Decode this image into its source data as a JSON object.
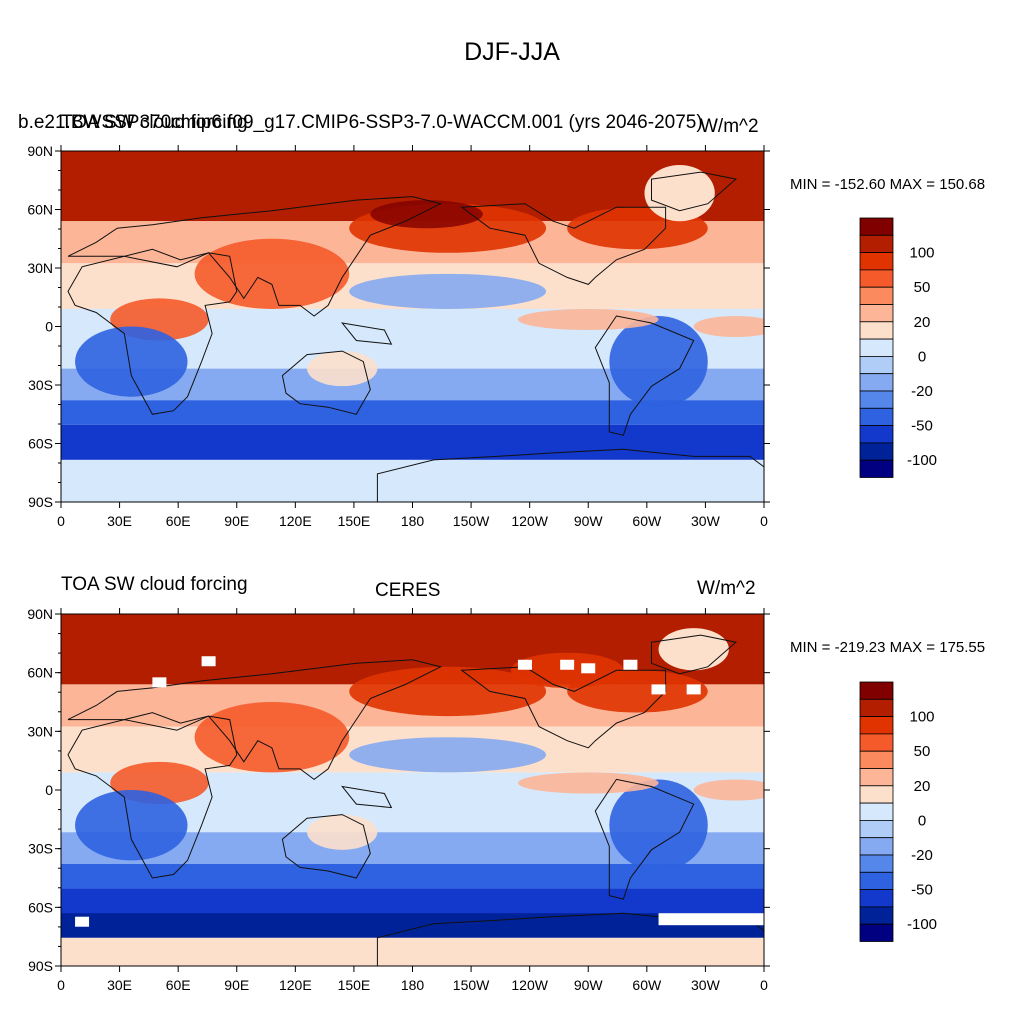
{
  "title": "DJF-JJA",
  "panels": [
    {
      "left_string": "TOA SW cloud forcing",
      "center_string": "b.e21.BWSSP370cmip6.f09_g17.CMIP6-SSP3-7.0-WACCM.001 (yrs 2046-2075)",
      "right_string": "W/m^2",
      "min_max": "MIN = -152.60 MAX = 150.68"
    },
    {
      "left_string": "TOA SW cloud forcing",
      "center_string": "CERES",
      "right_string": "W/m^2",
      "min_max": "MIN = -219.23 MAX = 175.55"
    }
  ],
  "lat_labels": [
    "90N",
    "60N",
    "30N",
    "0",
    "30S",
    "60S",
    "90S"
  ],
  "lon_labels": [
    "0",
    "30E",
    "60E",
    "90E",
    "120E",
    "150E",
    "180",
    "150W",
    "120W",
    "90W",
    "60W",
    "30W",
    "0"
  ],
  "colorbar": {
    "labels": [
      "100",
      "50",
      "20",
      "0",
      "-20",
      "-50",
      "-100"
    ],
    "colors": [
      "#800000",
      "#b31e00",
      "#e03300",
      "#f55a2a",
      "#fc8a5f",
      "#fcb597",
      "#fde0cc",
      "#d6e8fb",
      "#b0cdf8",
      "#85aaf1",
      "#5587ea",
      "#2e62e0",
      "#1238cc",
      "#002299",
      "#000080"
    ]
  },
  "map_colors": {
    "strong_pos": "#b31e00",
    "pos": "#e03300",
    "mid_pos": "#f55a2a",
    "light_pos": "#fcb597",
    "pale_pos": "#fde0cc",
    "pale_neg": "#d6e8fb",
    "light_neg": "#85aaf1",
    "mid_neg": "#2e62e0",
    "strong_neg": "#1238cc",
    "deep_neg": "#002299"
  }
}
